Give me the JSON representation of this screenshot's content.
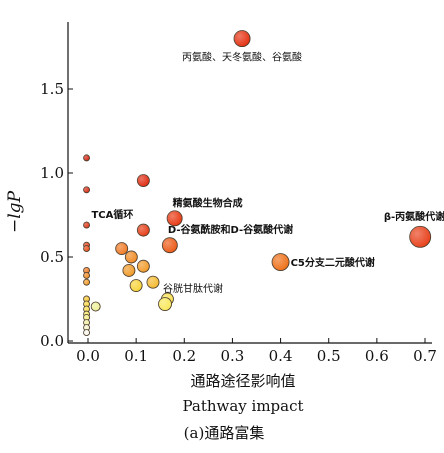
{
  "chart_data": {
    "type": "scatter",
    "xlabel": "通路途径影响值",
    "xlabel_en": "Pathway impact",
    "ylabel": "−lgP",
    "caption": "(a)通路富集",
    "xlim": [
      -0.03,
      0.72
    ],
    "ylim": [
      0.0,
      1.88
    ],
    "x_ticks": [
      "0.0",
      "0.1",
      "0.2",
      "0.3",
      "0.4",
      "0.5",
      "0.6",
      "0.7"
    ],
    "y_ticks": [
      "0.0",
      "0.5",
      "1.0",
      "1.5"
    ],
    "x_tick_values": [
      0.0,
      0.1,
      0.2,
      0.3,
      0.4,
      0.5,
      0.6,
      0.7
    ],
    "y_tick_values": [
      0.0,
      0.5,
      1.0,
      1.5
    ],
    "points": [
      {
        "x": 0.32,
        "y": 1.8,
        "size": 16,
        "color": "#e53010"
      },
      {
        "x": 0.69,
        "y": 0.62,
        "size": 21,
        "color": "#e8401a"
      },
      {
        "x": 0.4,
        "y": 0.47,
        "size": 17,
        "color": "#ee7018"
      },
      {
        "x": 0.18,
        "y": 0.73,
        "size": 15,
        "color": "#e83812"
      },
      {
        "x": 0.17,
        "y": 0.57,
        "size": 15,
        "color": "#ec5a16"
      },
      {
        "x": 0.115,
        "y": 0.955,
        "size": 12,
        "color": "#e02a10"
      },
      {
        "x": 0.115,
        "y": 0.66,
        "size": 12,
        "color": "#e63c14"
      },
      {
        "x": 0.07,
        "y": 0.55,
        "size": 12,
        "color": "#f07a24"
      },
      {
        "x": 0.09,
        "y": 0.5,
        "size": 12,
        "color": "#f08a22"
      },
      {
        "x": 0.115,
        "y": 0.445,
        "size": 12,
        "color": "#f29a28"
      },
      {
        "x": 0.085,
        "y": 0.42,
        "size": 12,
        "color": "#f09a26"
      },
      {
        "x": 0.135,
        "y": 0.35,
        "size": 12,
        "color": "#f5ba30"
      },
      {
        "x": 0.1,
        "y": 0.33,
        "size": 12,
        "color": "#f8d438"
      },
      {
        "x": 0.165,
        "y": 0.25,
        "size": 12,
        "color": "#f8e050"
      },
      {
        "x": 0.16,
        "y": 0.22,
        "size": 13,
        "color": "#f8e85a"
      },
      {
        "x": 0.016,
        "y": 0.205,
        "size": 9,
        "color": "#eef098"
      },
      {
        "x": -0.003,
        "y": 1.09,
        "size": 6,
        "color": "#d42410"
      },
      {
        "x": -0.003,
        "y": 0.9,
        "size": 6,
        "color": "#da2a10"
      },
      {
        "x": -0.003,
        "y": 0.69,
        "size": 6,
        "color": "#e03412"
      },
      {
        "x": -0.003,
        "y": 0.57,
        "size": 6,
        "color": "#e84014"
      },
      {
        "x": -0.003,
        "y": 0.55,
        "size": 6,
        "color": "#ea4a14"
      },
      {
        "x": -0.003,
        "y": 0.42,
        "size": 6,
        "color": "#f07a20"
      },
      {
        "x": -0.003,
        "y": 0.39,
        "size": 6,
        "color": "#f08a20"
      },
      {
        "x": -0.003,
        "y": 0.35,
        "size": 6,
        "color": "#f29a24"
      },
      {
        "x": -0.003,
        "y": 0.25,
        "size": 6,
        "color": "#f6c834"
      },
      {
        "x": -0.003,
        "y": 0.22,
        "size": 6,
        "color": "#f8d844"
      },
      {
        "x": -0.003,
        "y": 0.19,
        "size": 6,
        "color": "#f8e050"
      },
      {
        "x": -0.003,
        "y": 0.16,
        "size": 6,
        "color": "#f8e860"
      },
      {
        "x": -0.003,
        "y": 0.14,
        "size": 6,
        "color": "#f4ee80"
      },
      {
        "x": -0.003,
        "y": 0.11,
        "size": 6,
        "color": "#f2f0a6"
      },
      {
        "x": -0.003,
        "y": 0.08,
        "size": 6,
        "color": "#f4f4cc"
      },
      {
        "x": -0.003,
        "y": 0.05,
        "size": 6,
        "color": "#f8f8ee"
      }
    ],
    "annotations": [
      {
        "text": "丙氨酸、天冬氨酸、谷氨酸",
        "x": 0.32,
        "y": 1.8,
        "style": "reg",
        "anchor": "below"
      },
      {
        "text": "精氨酸生物合成",
        "x": 0.18,
        "y": 0.73,
        "style": "bold",
        "anchor": "above-right"
      },
      {
        "text": "TCA循环",
        "x": 0.115,
        "y": 0.66,
        "style": "bold",
        "anchor": "above-left"
      },
      {
        "text": "D-谷氨酰胺和D-谷氨酸代谢",
        "x": 0.17,
        "y": 0.57,
        "style": "bold",
        "anchor": "above-right"
      },
      {
        "text": "β-丙氨酸代谢",
        "x": 0.69,
        "y": 0.62,
        "style": "bold",
        "anchor": "above-left-far"
      },
      {
        "text": "C5分支二元酸代谢",
        "x": 0.4,
        "y": 0.47,
        "style": "bold",
        "anchor": "right"
      },
      {
        "text": "谷胱甘肽代谢",
        "x": 0.16,
        "y": 0.22,
        "style": "reg",
        "anchor": "above-right"
      }
    ]
  }
}
